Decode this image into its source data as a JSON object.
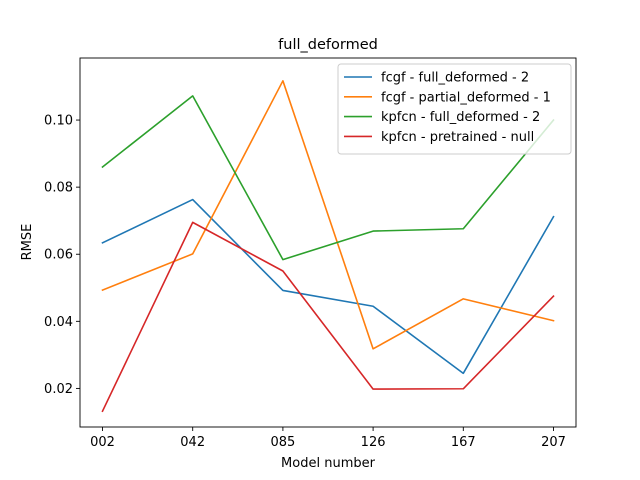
{
  "chart_data": {
    "type": "line",
    "title": "full_deformed",
    "xlabel": "Model number",
    "ylabel": "RMSE",
    "categories": [
      "002",
      "042",
      "085",
      "126",
      "167",
      "207"
    ],
    "ylim": [
      0.0085,
      0.1185
    ],
    "yticks": [
      0.02,
      0.04,
      0.06,
      0.08,
      0.1
    ],
    "ytick_labels": [
      "0.02",
      "0.04",
      "0.06",
      "0.08",
      "0.10"
    ],
    "grid": false,
    "legend_position": "top-right",
    "series": [
      {
        "name": "fcgf - full_deformed - 2",
        "color": "#1f77b4",
        "values": [
          0.0634,
          0.0763,
          0.0492,
          0.0445,
          0.0245,
          0.0712
        ]
      },
      {
        "name": "fcgf - partial_deformed - 1",
        "color": "#ff7f0e",
        "values": [
          0.0493,
          0.0601,
          0.1117,
          0.0318,
          0.0467,
          0.0402
        ]
      },
      {
        "name": "kpfcn - full_deformed - 2",
        "color": "#2ca02c",
        "values": [
          0.086,
          0.1072,
          0.0584,
          0.0669,
          0.0676,
          0.1
        ]
      },
      {
        "name": "kpfcn - pretrained - null",
        "color": "#d62728",
        "values": [
          0.0132,
          0.0695,
          0.055,
          0.0198,
          0.0199,
          0.0475
        ]
      }
    ]
  }
}
